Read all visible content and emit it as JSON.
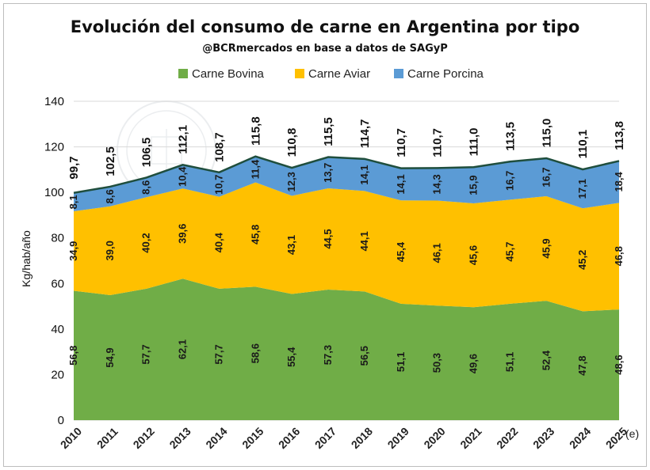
{
  "chart_data": {
    "type": "area",
    "title": "Evolución del consumo de carne en Argentina por tipo",
    "subtitle": "@BCRmercados en base a datos de SAGyP",
    "ylabel": "Kg/hab/año",
    "xlabel": "",
    "ylim": [
      0,
      140
    ],
    "yticks": [
      0,
      20,
      40,
      60,
      80,
      100,
      120,
      140
    ],
    "yticks_labels": [
      "0",
      "20",
      "40",
      "60",
      "80",
      "100",
      "120",
      "140"
    ],
    "grid": true,
    "legend_position": "top",
    "categories": [
      "2010",
      "2011",
      "2012",
      "2013",
      "2014",
      "2015",
      "2016",
      "2017",
      "2018",
      "2019",
      "2020",
      "2021",
      "2022",
      "2023",
      "2024",
      "2025"
    ],
    "last_category_suffix": "(e)",
    "series": [
      {
        "name": "Carne Bovina",
        "color": "#70AD47",
        "values": [
          56.8,
          54.9,
          57.7,
          62.1,
          57.7,
          58.6,
          55.4,
          57.3,
          56.5,
          51.1,
          50.3,
          49.6,
          51.1,
          52.4,
          47.8,
          48.6
        ],
        "labels": [
          "56,8",
          "54,9",
          "57,7",
          "62,1",
          "57,7",
          "58,6",
          "55,4",
          "57,3",
          "56,5",
          "51,1",
          "50,3",
          "49,6",
          "51,1",
          "52,4",
          "47,8",
          "48,6"
        ]
      },
      {
        "name": "Carne Aviar",
        "color": "#FFC000",
        "values": [
          34.9,
          39.0,
          40.2,
          39.6,
          40.4,
          45.8,
          43.1,
          44.5,
          44.1,
          45.4,
          46.1,
          45.6,
          45.7,
          45.9,
          45.2,
          46.8
        ],
        "labels": [
          "34,9",
          "39,0",
          "40,2",
          "39,6",
          "40,4",
          "45,8",
          "43,1",
          "44,5",
          "44,1",
          "45,4",
          "46,1",
          "45,6",
          "45,7",
          "45,9",
          "45,2",
          "46,8"
        ]
      },
      {
        "name": "Carne Porcina",
        "color": "#5B9BD5",
        "values": [
          8.1,
          8.6,
          8.6,
          10.4,
          10.7,
          11.4,
          12.3,
          13.7,
          14.1,
          14.1,
          14.3,
          15.9,
          16.7,
          16.7,
          17.1,
          18.4
        ],
        "labels": [
          "8,1",
          "8,6",
          "8,6",
          "10,4",
          "10,7",
          "11,4",
          "12,3",
          "13,7",
          "14,1",
          "14,1",
          "14,3",
          "15,9",
          "16,7",
          "16,7",
          "17,1",
          "18,4"
        ]
      }
    ],
    "totals": [
      99.7,
      102.5,
      106.5,
      112.1,
      108.7,
      115.8,
      110.8,
      115.5,
      114.7,
      110.7,
      110.7,
      111.0,
      113.5,
      115.0,
      110.1,
      113.8
    ],
    "totals_labels": [
      "99,7",
      "102,5",
      "106,5",
      "112,1",
      "108,7",
      "115,8",
      "110,8",
      "115,5",
      "114,7",
      "110,7",
      "110,7",
      "111,0",
      "113,5",
      "115,0",
      "110,1",
      "113,8"
    ],
    "total_line_color": "#1F4E3D"
  }
}
